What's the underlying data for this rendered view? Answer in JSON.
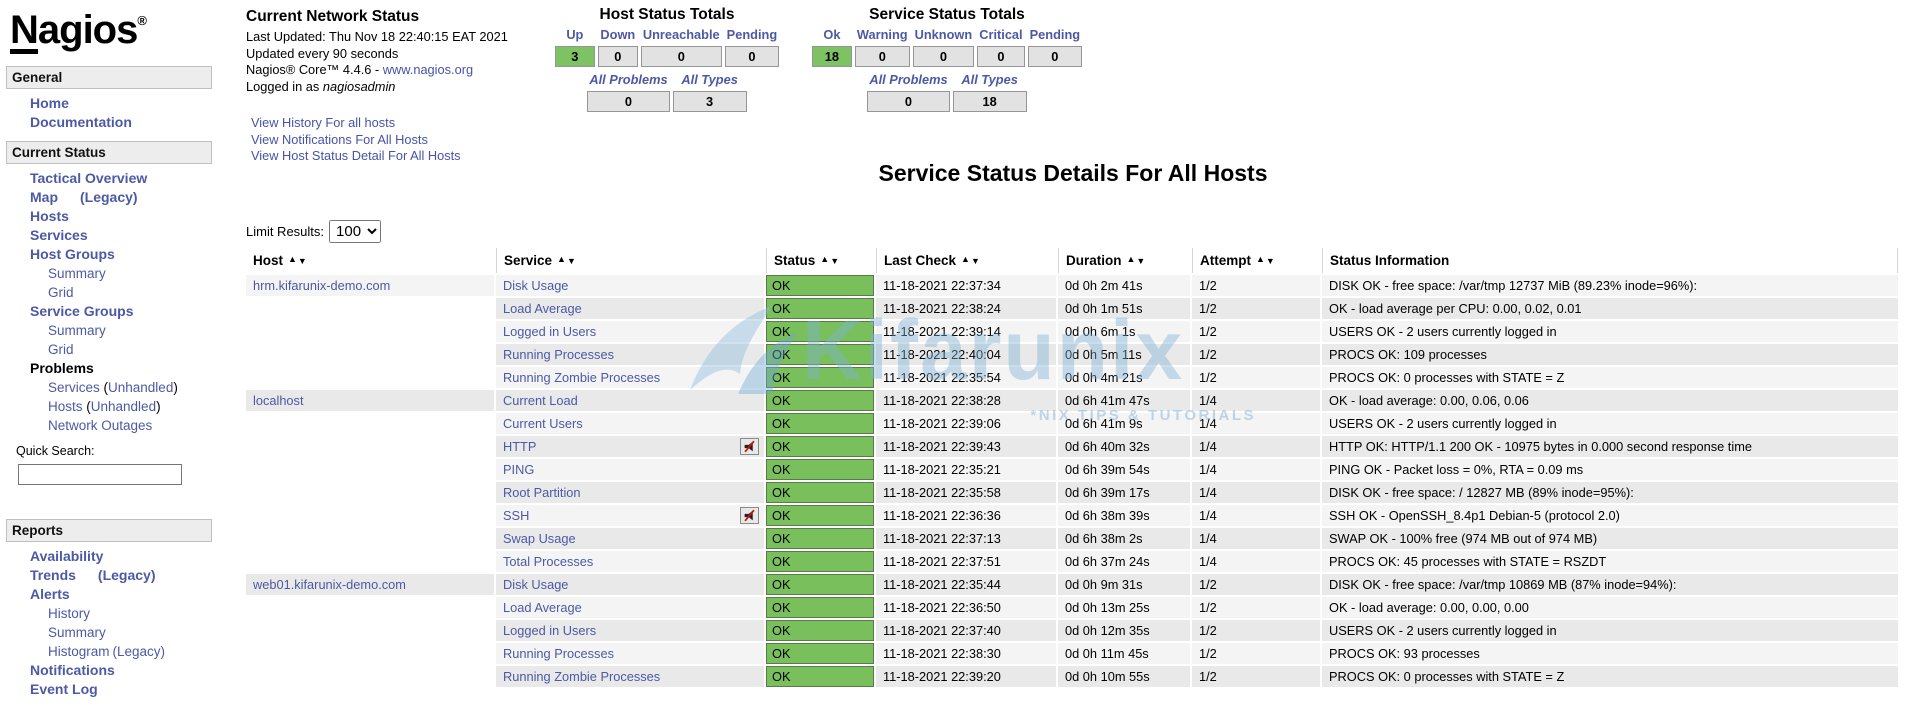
{
  "branding": {
    "logo_first": "N",
    "logo_rest": "agios",
    "logo_reg": "®"
  },
  "colors": {
    "link_blue": "#4c59a5",
    "ok_green": "#79bf5c",
    "totals_green": "#7dc364",
    "row_odd": "#f4f4f4",
    "row_even": "#e9e9e9",
    "box_gray": "#e2e2e2"
  },
  "sidebar": {
    "sections": [
      {
        "title": "General",
        "items": [
          {
            "label": "Home",
            "bold": true
          },
          {
            "label": "Documentation",
            "bold": true
          }
        ]
      },
      {
        "title": "Current Status",
        "items": [
          {
            "label": "Tactical Overview",
            "bold": true
          },
          {
            "label": "Map",
            "bold": true,
            "suffix": "(Legacy)",
            "gap": true
          },
          {
            "label": "Hosts",
            "bold": true
          },
          {
            "label": "Services",
            "bold": true
          },
          {
            "label": "Host Groups",
            "bold": true
          },
          {
            "label": "Summary",
            "indent": true
          },
          {
            "label": "Grid",
            "indent": true
          },
          {
            "label": "Service Groups",
            "bold": true
          },
          {
            "label": "Summary",
            "indent": true
          },
          {
            "label": "Grid",
            "indent": true
          },
          {
            "label": "Problems",
            "plain": true
          },
          {
            "label": "Services",
            "indent": true,
            "paren": "Unhandled"
          },
          {
            "label": "Hosts",
            "indent": true,
            "paren": "Unhandled"
          },
          {
            "label": "Network Outages",
            "indent": true
          }
        ],
        "search_label": "Quick Search:"
      },
      {
        "title": "Reports",
        "items": [
          {
            "label": "Availability",
            "bold": true
          },
          {
            "label": "Trends",
            "bold": true,
            "suffix": "(Legacy)",
            "gap": true
          },
          {
            "label": "Alerts",
            "bold": true
          },
          {
            "label": "History",
            "indent": true
          },
          {
            "label": "Summary",
            "indent": true
          },
          {
            "label": "Histogram",
            "indent": true,
            "suffix": "(Legacy)"
          },
          {
            "label": "Notifications",
            "bold": true
          },
          {
            "label": "Event Log",
            "bold": true
          }
        ]
      }
    ]
  },
  "info": {
    "title": "Current Network Status",
    "lines": [
      "Last Updated: Thu Nov 18 22:40:15 EAT 2021",
      "Updated every 90 seconds"
    ],
    "core_prefix": "Nagios® Core™ 4.4.6 - ",
    "core_link": "www.nagios.org",
    "logged_prefix": "Logged in as ",
    "logged_user": "nagiosadmin",
    "links": [
      "View History For all hosts",
      "View Notifications For All Hosts",
      "View Host Status Detail For All Hosts"
    ]
  },
  "host_totals": {
    "title": "Host Status Totals",
    "columns": [
      "Up",
      "Down",
      "Unreachable",
      "Pending"
    ],
    "values": [
      "3",
      "0",
      "0",
      "0"
    ],
    "highlight_index": 0,
    "summary_columns": [
      "All Problems",
      "All Types"
    ],
    "summary_values": [
      "0",
      "3"
    ]
  },
  "service_totals": {
    "title": "Service Status Totals",
    "columns": [
      "Ok",
      "Warning",
      "Unknown",
      "Critical",
      "Pending"
    ],
    "values": [
      "18",
      "0",
      "0",
      "0",
      "0"
    ],
    "highlight_index": 0,
    "summary_columns": [
      "All Problems",
      "All Types"
    ],
    "summary_values": [
      "0",
      "18"
    ]
  },
  "main": {
    "title": "Service Status Details For All Hosts",
    "limit_label": "Limit Results:",
    "limit_value": "100"
  },
  "table": {
    "headers": [
      {
        "label": "Host",
        "sortable": true
      },
      {
        "label": "Service",
        "sortable": true
      },
      {
        "label": "Status",
        "sortable": true
      },
      {
        "label": "Last Check",
        "sortable": true
      },
      {
        "label": "Duration",
        "sortable": true
      },
      {
        "label": "Attempt",
        "sortable": true
      },
      {
        "label": "Status Information",
        "sortable": false
      }
    ],
    "sort_icons": [
      "sort-ascending-icon",
      "sort-descending-icon"
    ],
    "groups": [
      {
        "host": "hrm.kifarunix-demo.com",
        "services": [
          {
            "name": "Disk Usage",
            "status": "OK",
            "last_check": "11-18-2021 22:37:34",
            "duration": "0d 0h 2m 41s",
            "attempt": "1/2",
            "info": "DISK OK - free space: /var/tmp 12737 MiB (89.23% inode=96%):"
          },
          {
            "name": "Load Average",
            "status": "OK",
            "last_check": "11-18-2021 22:38:24",
            "duration": "0d 0h 1m 51s",
            "attempt": "1/2",
            "info": "OK - load average per CPU: 0.00, 0.02, 0.01"
          },
          {
            "name": "Logged in Users",
            "status": "OK",
            "last_check": "11-18-2021 22:39:14",
            "duration": "0d 0h 6m 1s",
            "attempt": "1/2",
            "info": "USERS OK - 2 users currently logged in"
          },
          {
            "name": "Running Processes",
            "status": "OK",
            "last_check": "11-18-2021 22:40:04",
            "duration": "0d 0h 5m 11s",
            "attempt": "1/2",
            "info": "PROCS OK: 109 processes"
          },
          {
            "name": "Running Zombie Processes",
            "status": "OK",
            "last_check": "11-18-2021 22:35:54",
            "duration": "0d 0h 4m 21s",
            "attempt": "1/2",
            "info": "PROCS OK: 0 processes with STATE = Z"
          }
        ]
      },
      {
        "host": "localhost",
        "services": [
          {
            "name": "Current Load",
            "status": "OK",
            "last_check": "11-18-2021 22:38:28",
            "duration": "0d 6h 41m 47s",
            "attempt": "1/4",
            "info": "OK - load average: 0.00, 0.06, 0.06"
          },
          {
            "name": "Current Users",
            "status": "OK",
            "last_check": "11-18-2021 22:39:06",
            "duration": "0d 6h 41m 9s",
            "attempt": "1/4",
            "info": "USERS OK - 2 users currently logged in"
          },
          {
            "name": "HTTP",
            "icon": "notifications-disabled",
            "status": "OK",
            "last_check": "11-18-2021 22:39:43",
            "duration": "0d 6h 40m 32s",
            "attempt": "1/4",
            "info": "HTTP OK: HTTP/1.1 200 OK - 10975 bytes in 0.000 second response time"
          },
          {
            "name": "PING",
            "status": "OK",
            "last_check": "11-18-2021 22:35:21",
            "duration": "0d 6h 39m 54s",
            "attempt": "1/4",
            "info": "PING OK - Packet loss = 0%, RTA = 0.09 ms"
          },
          {
            "name": "Root Partition",
            "status": "OK",
            "last_check": "11-18-2021 22:35:58",
            "duration": "0d 6h 39m 17s",
            "attempt": "1/4",
            "info": "DISK OK - free space: / 12827 MB (89% inode=95%):"
          },
          {
            "name": "SSH",
            "icon": "notifications-disabled",
            "status": "OK",
            "last_check": "11-18-2021 22:36:36",
            "duration": "0d 6h 38m 39s",
            "attempt": "1/4",
            "info": "SSH OK - OpenSSH_8.4p1 Debian-5 (protocol 2.0)"
          },
          {
            "name": "Swap Usage",
            "status": "OK",
            "last_check": "11-18-2021 22:37:13",
            "duration": "0d 6h 38m 2s",
            "attempt": "1/4",
            "info": "SWAP OK - 100% free (974 MB out of 974 MB)"
          },
          {
            "name": "Total Processes",
            "status": "OK",
            "last_check": "11-18-2021 22:37:51",
            "duration": "0d 6h 37m 24s",
            "attempt": "1/4",
            "info": "PROCS OK: 45 processes with STATE = RSZDT"
          }
        ]
      },
      {
        "host": "web01.kifarunix-demo.com",
        "services": [
          {
            "name": "Disk Usage",
            "status": "OK",
            "last_check": "11-18-2021 22:35:44",
            "duration": "0d 0h 9m 31s",
            "attempt": "1/2",
            "info": "DISK OK - free space: /var/tmp 10869 MB (87% inode=94%):"
          },
          {
            "name": "Load Average",
            "status": "OK",
            "last_check": "11-18-2021 22:36:50",
            "duration": "0d 0h 13m 25s",
            "attempt": "1/2",
            "info": "OK - load average: 0.00, 0.00, 0.00"
          },
          {
            "name": "Logged in Users",
            "status": "OK",
            "last_check": "11-18-2021 22:37:40",
            "duration": "0d 0h 12m 35s",
            "attempt": "1/2",
            "info": "USERS OK - 2 users currently logged in"
          },
          {
            "name": "Running Processes",
            "status": "OK",
            "last_check": "11-18-2021 22:38:30",
            "duration": "0d 0h 11m 45s",
            "attempt": "1/2",
            "info": "PROCS OK: 93 processes"
          },
          {
            "name": "Running Zombie Processes",
            "status": "OK",
            "last_check": "11-18-2021 22:39:20",
            "duration": "0d 0h 10m 55s",
            "attempt": "1/2",
            "info": "PROCS OK: 0 processes with STATE = Z"
          }
        ]
      }
    ]
  },
  "watermark": {
    "brand": "Kifarunix",
    "tagline": "*NIX TIPS & TUTORIALS"
  }
}
